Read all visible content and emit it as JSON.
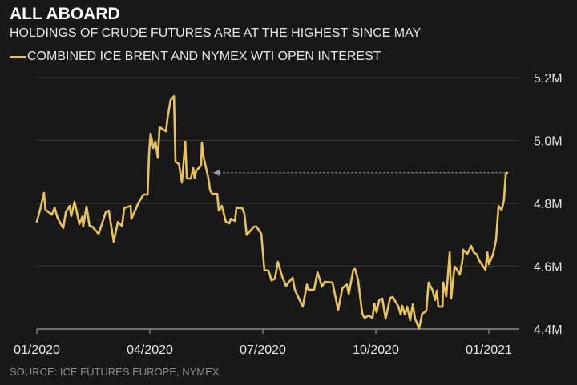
{
  "chart_data": {
    "type": "line",
    "title": "ALL ABOARD",
    "subtitle": "HOLDINGS OF CRUDE FUTURES ARE AT THE HIGHEST SINCE MAY",
    "source": "SOURCE: ICE FUTURES EUROPE, NYMEX",
    "xlabel": "",
    "ylabel": "",
    "x_unit": "months since 01/2020",
    "xlim": [
      0,
      12.9
    ],
    "ylim": [
      4.4,
      5.2
    ],
    "grid": true,
    "y_axis_side": "right",
    "x_ticks": [
      {
        "value": 0,
        "label": "01/2020"
      },
      {
        "value": 3,
        "label": "04/2020"
      },
      {
        "value": 6,
        "label": "07/2020"
      },
      {
        "value": 9,
        "label": "10/2020"
      },
      {
        "value": 12,
        "label": "01/2021"
      }
    ],
    "y_ticks": [
      {
        "value": 4.4,
        "label": "4.4M"
      },
      {
        "value": 4.6,
        "label": "4.6M"
      },
      {
        "value": 4.8,
        "label": "4.8M"
      },
      {
        "value": 5.0,
        "label": "5.0M"
      },
      {
        "value": 5.2,
        "label": "5.2M"
      }
    ],
    "annotation": {
      "type": "dashed-arrow",
      "y": 4.897,
      "from_x": 12.49,
      "to_x": 4.68
    },
    "colors": {
      "line": "#e8c25c",
      "grid": "#333333",
      "arrow": "#9a9fa8",
      "axis": "#8a8a8a"
    },
    "series": [
      {
        "name": "COMBINED ICE BRENT AND NYMEX WTI OPEN INTEREST",
        "points": [
          [
            0,
            4.742
          ],
          [
            0.085,
            4.779
          ],
          [
            0.19,
            4.833
          ],
          [
            0.23,
            4.779
          ],
          [
            0.4,
            4.764
          ],
          [
            0.47,
            4.787
          ],
          [
            0.55,
            4.754
          ],
          [
            0.7,
            4.721
          ],
          [
            0.77,
            4.772
          ],
          [
            0.87,
            4.792
          ],
          [
            0.91,
            4.759
          ],
          [
            1.0,
            4.805
          ],
          [
            1.13,
            4.734
          ],
          [
            1.21,
            4.759
          ],
          [
            1.23,
            4.726
          ],
          [
            1.32,
            4.79
          ],
          [
            1.4,
            4.728
          ],
          [
            1.47,
            4.726
          ],
          [
            1.64,
            4.703
          ],
          [
            1.83,
            4.772
          ],
          [
            1.91,
            4.777
          ],
          [
            2.04,
            4.678
          ],
          [
            2.15,
            4.741
          ],
          [
            2.26,
            4.728
          ],
          [
            2.32,
            4.785
          ],
          [
            2.49,
            4.792
          ],
          [
            2.51,
            4.751
          ],
          [
            2.7,
            4.802
          ],
          [
            2.83,
            4.828
          ],
          [
            2.94,
            4.828
          ],
          [
            2.98,
            4.963
          ],
          [
            3.02,
            5.022
          ],
          [
            3.09,
            4.976
          ],
          [
            3.15,
            4.996
          ],
          [
            3.21,
            4.945
          ],
          [
            3.26,
            5.042
          ],
          [
            3.43,
            5.029
          ],
          [
            3.47,
            5.072
          ],
          [
            3.55,
            5.128
          ],
          [
            3.64,
            5.141
          ],
          [
            3.68,
            4.932
          ],
          [
            3.77,
            4.925
          ],
          [
            3.85,
            4.866
          ],
          [
            3.94,
            4.996
          ],
          [
            3.98,
            4.879
          ],
          [
            4.09,
            4.879
          ],
          [
            4.15,
            4.912
          ],
          [
            4.19,
            4.879
          ],
          [
            4.23,
            4.904
          ],
          [
            4.36,
            4.92
          ],
          [
            4.38,
            4.993
          ],
          [
            4.43,
            4.945
          ],
          [
            4.55,
            4.881
          ],
          [
            4.6,
            4.841
          ],
          [
            4.66,
            4.83
          ],
          [
            4.79,
            4.83
          ],
          [
            4.83,
            4.777
          ],
          [
            4.91,
            4.792
          ],
          [
            5.02,
            4.741
          ],
          [
            5.11,
            4.736
          ],
          [
            5.15,
            4.751
          ],
          [
            5.26,
            4.744
          ],
          [
            5.3,
            4.787
          ],
          [
            5.45,
            4.785
          ],
          [
            5.51,
            4.767
          ],
          [
            5.57,
            4.7
          ],
          [
            5.77,
            4.726
          ],
          [
            5.83,
            4.726
          ],
          [
            5.96,
            4.703
          ],
          [
            6.04,
            4.588
          ],
          [
            6.15,
            4.586
          ],
          [
            6.23,
            4.555
          ],
          [
            6.32,
            4.56
          ],
          [
            6.4,
            4.614
          ],
          [
            6.51,
            4.568
          ],
          [
            6.62,
            4.537
          ],
          [
            6.68,
            4.548
          ],
          [
            6.79,
            4.563
          ],
          [
            6.85,
            4.525
          ],
          [
            7.06,
            4.471
          ],
          [
            7.17,
            4.542
          ],
          [
            7.21,
            4.525
          ],
          [
            7.36,
            4.525
          ],
          [
            7.45,
            4.581
          ],
          [
            7.57,
            4.535
          ],
          [
            7.64,
            4.55
          ],
          [
            7.85,
            4.548
          ],
          [
            8.0,
            4.461
          ],
          [
            8.11,
            4.53
          ],
          [
            8.23,
            4.542
          ],
          [
            8.28,
            4.512
          ],
          [
            8.4,
            4.588
          ],
          [
            8.45,
            4.591
          ],
          [
            8.53,
            4.555
          ],
          [
            8.64,
            4.448
          ],
          [
            8.7,
            4.435
          ],
          [
            8.81,
            4.443
          ],
          [
            8.91,
            4.435
          ],
          [
            8.96,
            4.481
          ],
          [
            9.02,
            4.453
          ],
          [
            9.09,
            4.492
          ],
          [
            9.17,
            4.497
          ],
          [
            9.26,
            4.433
          ],
          [
            9.38,
            4.499
          ],
          [
            9.45,
            4.502
          ],
          [
            9.6,
            4.471
          ],
          [
            9.66,
            4.446
          ],
          [
            9.7,
            4.474
          ],
          [
            9.77,
            4.446
          ],
          [
            9.83,
            4.471
          ],
          [
            9.91,
            4.428
          ],
          [
            9.98,
            4.479
          ],
          [
            10.04,
            4.433
          ],
          [
            10.15,
            4.402
          ],
          [
            10.23,
            4.448
          ],
          [
            10.34,
            4.458
          ],
          [
            10.4,
            4.548
          ],
          [
            10.51,
            4.522
          ],
          [
            10.57,
            4.492
          ],
          [
            10.62,
            4.522
          ],
          [
            10.66,
            4.471
          ],
          [
            10.77,
            4.471
          ],
          [
            10.79,
            4.548
          ],
          [
            10.87,
            4.504
          ],
          [
            10.96,
            4.644
          ],
          [
            11.0,
            4.497
          ],
          [
            11.09,
            4.599
          ],
          [
            11.17,
            4.586
          ],
          [
            11.23,
            4.573
          ],
          [
            11.3,
            4.619
          ],
          [
            11.32,
            4.652
          ],
          [
            11.43,
            4.639
          ],
          [
            11.53,
            4.665
          ],
          [
            11.6,
            4.644
          ],
          [
            11.68,
            4.637
          ],
          [
            11.74,
            4.619
          ],
          [
            11.91,
            4.588
          ],
          [
            11.96,
            4.644
          ],
          [
            12.0,
            4.606
          ],
          [
            12.11,
            4.637
          ],
          [
            12.19,
            4.683
          ],
          [
            12.26,
            4.792
          ],
          [
            12.34,
            4.779
          ],
          [
            12.4,
            4.81
          ],
          [
            12.45,
            4.892
          ],
          [
            12.49,
            4.897
          ]
        ]
      }
    ]
  }
}
